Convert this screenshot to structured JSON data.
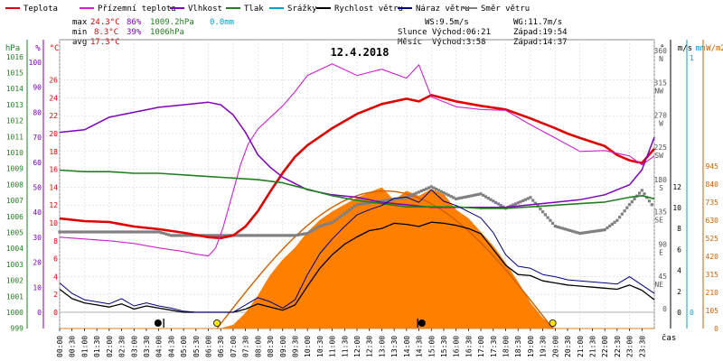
{
  "legend": [
    {
      "label": "Teplota",
      "color": "#e00000"
    },
    {
      "label": "Přízemní teplota",
      "color": "#d020d0"
    },
    {
      "label": "Vlhkost",
      "color": "#8000c0"
    },
    {
      "label": "Tlak",
      "color": "#208020"
    },
    {
      "label": "Srážky",
      "color": "#00a0d0"
    },
    {
      "label": "Rychlost větru",
      "color": "#000000"
    },
    {
      "label": "Náraz větru",
      "color": "#000080"
    },
    {
      "label": "Směr větru",
      "color": "#808080"
    }
  ],
  "stats": {
    "max_label": "max",
    "max_temp": "24.3°C",
    "max_hum": "86%",
    "max_press": "1009.2hPa",
    "max_rain": "0.0mm",
    "min_label": "min",
    "min_temp": "8.3°C",
    "min_hum": "39%",
    "min_press": "1006hPa",
    "avg_label": "avg",
    "avg_temp": "17.3°C",
    "ws": "WS:9.5m/s",
    "wg": "WG:11.7m/s",
    "sun_label": "Slunce",
    "sun_rise": "Východ:06:21",
    "sun_set": "Západ:19:54",
    "moon_label": "Měsíc",
    "moon_rise": "Východ:3:58",
    "moon_set": "Západ:14:37"
  },
  "title": "12.4.2018",
  "axis_units": {
    "hpa": "hPa",
    "pct": "%",
    "temp": "°C",
    "deg": "°",
    "ms": "m/s",
    "mm": "mm",
    "wm2": "W/m2",
    "time": "čas"
  },
  "colors": {
    "temp": "#e00000",
    "ground": "#d020d0",
    "hum": "#8000c0",
    "press": "#208020",
    "rain": "#00a0d0",
    "wind": "#000000",
    "gust": "#000080",
    "dir": "#808080",
    "solar": "#ff8000",
    "solar_theory": "#d06000"
  },
  "chart_data": {
    "type": "line",
    "title": "12.4.2018",
    "x_start": "00:00",
    "x_end": "24:00",
    "x_ticks": [
      "00:00",
      "00:30",
      "01:00",
      "01:30",
      "02:00",
      "02:30",
      "03:00",
      "03:30",
      "04:00",
      "04:30",
      "05:00",
      "05:30",
      "06:00",
      "06:30",
      "07:00",
      "07:30",
      "08:00",
      "08:30",
      "09:00",
      "09:30",
      "10:00",
      "10:30",
      "11:00",
      "11:30",
      "12:00",
      "12:30",
      "13:00",
      "13:30",
      "14:00",
      "14:30",
      "15:00",
      "15:30",
      "16:00",
      "16:30",
      "17:00",
      "17:30",
      "18:00",
      "18:30",
      "19:00",
      "19:30",
      "20:00",
      "20:30",
      "21:00",
      "21:30",
      "22:00",
      "22:30",
      "23:00",
      "23:30"
    ],
    "axes": {
      "pressure": {
        "label": "hPa",
        "ticks": [
          999,
          1000,
          1001,
          1002,
          1003,
          1004,
          1005,
          1006,
          1007,
          1008,
          1009,
          1010,
          1011,
          1012,
          1013,
          1014,
          1015,
          1016
        ]
      },
      "humidity": {
        "label": "%",
        "ticks": [
          0,
          10,
          20,
          30,
          40,
          50,
          60,
          70,
          80,
          90,
          100
        ]
      },
      "temperature": {
        "label": "°C",
        "ticks": [
          0,
          2,
          4,
          6,
          8,
          10,
          12,
          14,
          16,
          18,
          20,
          22,
          24,
          26
        ]
      },
      "direction": {
        "label": "°",
        "ticks": [
          "0",
          "45 NE",
          "90 E",
          "135 SE",
          "180 S",
          "225 SW",
          "270 W",
          "315 NW",
          "360 N"
        ]
      },
      "wind": {
        "label": "m/s",
        "ticks": [
          0,
          2,
          4,
          6,
          8,
          10,
          12
        ]
      },
      "rain": {
        "label": "mm",
        "ticks": [
          0,
          1
        ]
      },
      "solar": {
        "label": "W/m2",
        "ticks": [
          0,
          105,
          210,
          315,
          420,
          525,
          630,
          735,
          840,
          945
        ]
      }
    },
    "series": [
      {
        "name": "Teplota",
        "unit": "°C",
        "x": [
          0,
          1,
          2,
          3,
          4,
          5,
          6,
          6.5,
          7,
          7.5,
          8,
          8.5,
          9,
          9.5,
          10,
          11,
          12,
          13,
          14,
          14.5,
          15,
          16,
          17,
          18,
          19,
          20,
          20.5,
          21,
          22,
          22.5,
          23,
          23.5,
          24
        ],
        "y": [
          10.5,
          10.2,
          10.1,
          9.6,
          9.3,
          8.9,
          8.4,
          8.3,
          8.6,
          9.6,
          11.3,
          13.5,
          15.6,
          17.4,
          18.7,
          20.6,
          22.2,
          23.3,
          23.9,
          23.6,
          24.3,
          23.6,
          23.1,
          22.7,
          21.7,
          20.6,
          20.0,
          19.5,
          18.6,
          17.6,
          17.0,
          16.7,
          18.3
        ]
      },
      {
        "name": "Přízemní teplota",
        "unit": "°C",
        "x": [
          0,
          1,
          2,
          3,
          4,
          5,
          5.5,
          6,
          6.3,
          6.6,
          7,
          7.3,
          7.6,
          8,
          8.5,
          9,
          9.5,
          10,
          11,
          12,
          13,
          14,
          14.5,
          15,
          16,
          17,
          18,
          19,
          20,
          21,
          22,
          23,
          23.5,
          24
        ],
        "y": [
          8.4,
          8.2,
          8.0,
          7.7,
          7.2,
          6.8,
          6.5,
          6.3,
          7.2,
          9.5,
          13.5,
          16.5,
          18.8,
          20.5,
          21.8,
          23.1,
          24.7,
          26.5,
          27.8,
          26.5,
          27.2,
          26.2,
          27.7,
          24.1,
          23.0,
          22.7,
          22.6,
          21.0,
          19.5,
          18.0,
          18.1,
          17.5,
          16.5,
          17.5
        ]
      },
      {
        "name": "Vlhkost",
        "unit": "%",
        "x": [
          0,
          1,
          2,
          3,
          4,
          5,
          6,
          6.5,
          7,
          7.5,
          8,
          8.5,
          9,
          10,
          11,
          12,
          13,
          14,
          15,
          16,
          17,
          18,
          19,
          20,
          21,
          22,
          23,
          23.5,
          24
        ],
        "y": [
          72,
          73,
          78,
          80,
          82,
          83,
          84,
          83,
          79,
          72,
          63,
          58,
          54,
          49,
          47,
          46,
          44,
          43,
          42,
          42,
          42,
          42,
          43,
          44,
          45,
          47,
          51,
          57,
          70
        ]
      },
      {
        "name": "Tlak",
        "unit": "hPa",
        "x": [
          0,
          1,
          2,
          3,
          4,
          5,
          6,
          7,
          8,
          9,
          10,
          11,
          12,
          13,
          14,
          15,
          16,
          17,
          18,
          19,
          20,
          21,
          22,
          23,
          23.5,
          24
        ],
        "y": [
          1008.9,
          1008.8,
          1008.8,
          1008.7,
          1008.7,
          1008.6,
          1008.5,
          1008.4,
          1008.3,
          1008.1,
          1007.7,
          1007.3,
          1007.0,
          1006.8,
          1006.6,
          1006.6,
          1006.6,
          1006.5,
          1006.5,
          1006.6,
          1006.7,
          1006.8,
          1006.9,
          1007.2,
          1007.3,
          1007.1
        ]
      },
      {
        "name": "Rychlost větru",
        "unit": "m/s",
        "x": [
          0,
          0.5,
          1,
          1.5,
          2,
          2.5,
          3,
          3.5,
          4,
          4.5,
          5,
          5.5,
          6,
          6.5,
          7,
          7.5,
          8,
          8.5,
          9,
          9.5,
          10,
          10.5,
          11,
          11.5,
          12,
          12.5,
          13,
          13.5,
          14,
          14.5,
          15,
          15.5,
          16,
          16.5,
          17,
          17.5,
          18,
          18.5,
          19,
          19.5,
          20,
          20.5,
          21,
          21.5,
          22,
          22.5,
          23,
          23.5,
          24
        ],
        "y": [
          2.2,
          1.3,
          0.9,
          0.7,
          0.5,
          0.8,
          0.3,
          0.6,
          0.4,
          0.2,
          0,
          0,
          0,
          0,
          0,
          0.3,
          0.8,
          0.5,
          0.2,
          0.7,
          2.5,
          4.2,
          5.5,
          6.5,
          7.2,
          7.8,
          8.0,
          8.5,
          8.4,
          8.2,
          8.6,
          8.5,
          8.3,
          8.0,
          7.5,
          6.0,
          4.5,
          3.6,
          3.5,
          3.0,
          2.8,
          2.6,
          2.5,
          2.4,
          2.3,
          2.2,
          2.6,
          2.1,
          1.2
        ]
      },
      {
        "name": "Náraz větru",
        "unit": "m/s",
        "x": [
          0,
          0.5,
          1,
          1.5,
          2,
          2.5,
          3,
          3.5,
          4,
          4.5,
          5,
          5.5,
          6,
          6.5,
          7,
          7.5,
          8,
          8.5,
          9,
          9.5,
          10,
          10.5,
          11,
          11.5,
          12,
          12.5,
          13,
          13.5,
          14,
          14.5,
          15,
          15.5,
          16,
          16.5,
          17,
          17.5,
          18,
          18.5,
          19,
          19.5,
          20,
          20.5,
          21,
          21.5,
          22,
          22.5,
          23,
          23.5,
          24
        ],
        "y": [
          2.8,
          1.8,
          1.2,
          1.0,
          0.8,
          1.3,
          0.6,
          0.9,
          0.6,
          0.4,
          0.1,
          0,
          0,
          0,
          0,
          0.7,
          1.4,
          1.0,
          0.4,
          1.2,
          3.6,
          5.6,
          7.0,
          8.2,
          9.3,
          9.8,
          10.2,
          10.9,
          11.0,
          10.5,
          11.7,
          10.6,
          10.2,
          9.6,
          9.0,
          7.6,
          5.5,
          4.4,
          4.2,
          3.6,
          3.4,
          3.1,
          3.0,
          2.9,
          2.8,
          2.7,
          3.4,
          2.6,
          1.8
        ]
      },
      {
        "name": "Směr větru",
        "unit": "°",
        "x": [
          0,
          1,
          2,
          3,
          4,
          4.5,
          5,
          6,
          7,
          8,
          9,
          9.5,
          10,
          10.5,
          11,
          12,
          13,
          14,
          15,
          16,
          17,
          18,
          19,
          20,
          21,
          22,
          22.5,
          23,
          23.5,
          24
        ],
        "y": [
          112,
          112,
          112,
          112,
          112,
          107,
          107,
          107,
          107,
          107,
          107,
          107,
          110,
          120,
          125,
          150,
          155,
          160,
          175,
          158,
          165,
          145,
          160,
          120,
          110,
          115,
          128,
          150,
          170,
          145
        ]
      },
      {
        "name": "Sluneční záření",
        "unit": "W/m2",
        "x": [
          0,
          6,
          6.5,
          7,
          7.5,
          8,
          8.5,
          9,
          9.5,
          10,
          10.5,
          11,
          12,
          12.5,
          13,
          13.5,
          14,
          14.5,
          15,
          15.5,
          16,
          16.5,
          17,
          17.5,
          18,
          18.5,
          19,
          19.5,
          20,
          24
        ],
        "y": [
          0,
          0,
          0,
          20,
          90,
          190,
          310,
          400,
          470,
          560,
          630,
          680,
          760,
          790,
          820,
          745,
          800,
          770,
          810,
          780,
          690,
          640,
          560,
          480,
          380,
          270,
          150,
          60,
          0,
          0
        ]
      }
    ],
    "annotations": [
      "sunrise 06:21",
      "sunset 19:54",
      "moonrise 03:58",
      "moonset 14:37"
    ]
  }
}
